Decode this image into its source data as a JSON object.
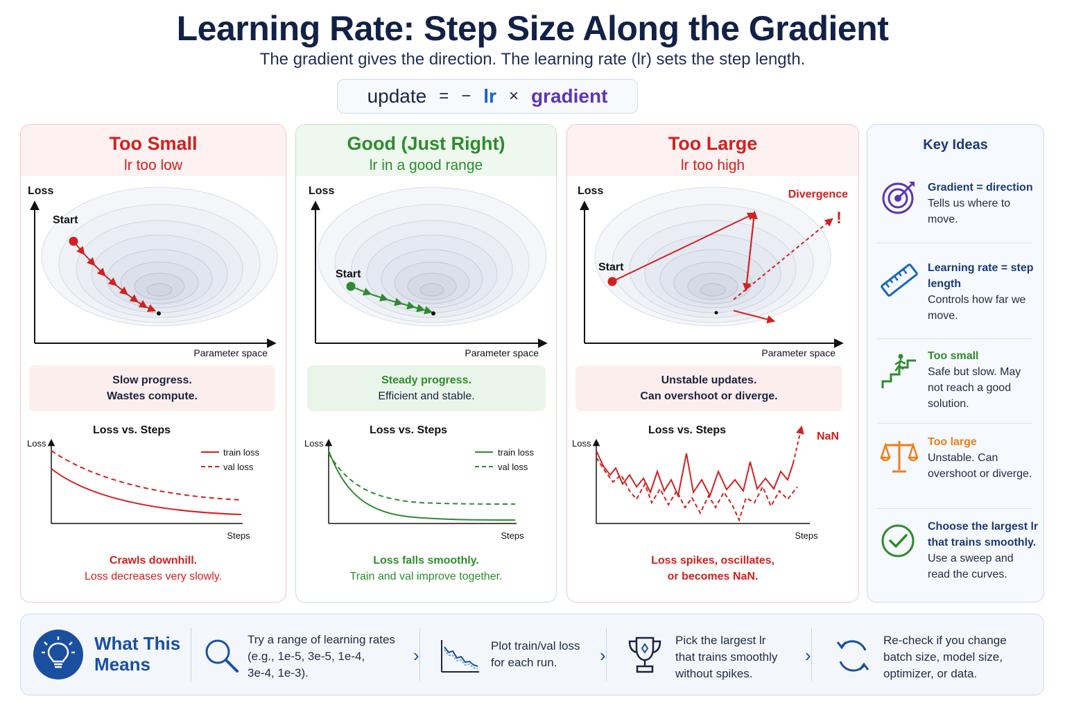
{
  "header": {
    "title": "Learning Rate: Step Size Along the Gradient",
    "subtitle": "The gradient gives the direction. The learning rate (lr) sets the step length."
  },
  "formula": {
    "update": "update",
    "equals": "=",
    "minus": "−",
    "lr": "lr",
    "times": "×",
    "gradient": "gradient"
  },
  "colors": {
    "red": "#d32020",
    "green": "#2e8b2e",
    "blue": "#1a4fa0",
    "purple": "#5e35b1",
    "orange": "#ef7d17"
  },
  "panels": {
    "small": {
      "title": "Too Small",
      "subtitle": "lr too low",
      "axis_y": "Loss",
      "axis_x": "Parameter space",
      "start": "Start",
      "note_line1": "Slow progress.",
      "note_line2": "Wastes compute.",
      "chart_title": "Loss vs. Steps",
      "chart_y": "Loss",
      "chart_x": "Steps",
      "legend_train": "train loss",
      "legend_val": "val loss",
      "caption_line1": "Crawls downhill.",
      "caption_line2": "Loss decreases very slowly."
    },
    "good": {
      "title": "Good (Just Right)",
      "subtitle": "lr in a good range",
      "axis_y": "Loss",
      "axis_x": "Parameter space",
      "start": "Start",
      "note_line1": "Steady progress.",
      "note_line2": "Efficient and stable.",
      "chart_title": "Loss vs. Steps",
      "chart_y": "Loss",
      "chart_x": "Steps",
      "legend_train": "train loss",
      "legend_val": "val loss",
      "caption_line1": "Loss falls smoothly.",
      "caption_line2": "Train and val improve together."
    },
    "large": {
      "title": "Too Large",
      "subtitle": "lr too high",
      "axis_y": "Loss",
      "axis_x": "Parameter space",
      "start": "Start",
      "divergence": "Divergence",
      "exclaim": "!",
      "note_line1": "Unstable updates.",
      "note_line2": "Can overshoot or diverge.",
      "chart_title": "Loss vs. Steps",
      "chart_y": "Loss",
      "chart_x": "Steps",
      "nan": "NaN",
      "caption_line1": "Loss spikes, oscillates,",
      "caption_line2": "or becomes NaN."
    }
  },
  "key_ideas": {
    "title": "Key Ideas",
    "items": [
      {
        "icon": "target-icon",
        "head": "Gradient = direction",
        "body": "Tells us where to move."
      },
      {
        "icon": "ruler-icon",
        "head": "Learning rate = step length",
        "body": "Controls how far we move."
      },
      {
        "icon": "stairs-icon",
        "head": "Too small",
        "body": "Safe but slow. May not reach a good solution."
      },
      {
        "icon": "scale-icon",
        "head": "Too large",
        "body": "Unstable. Can overshoot or diverge."
      },
      {
        "icon": "check-circle-icon",
        "head": "Choose the largest lr that trains smoothly.",
        "body": "Use a sweep and read the curves."
      }
    ]
  },
  "bottom": {
    "heading_line1": "What This",
    "heading_line2": "Means",
    "steps": [
      {
        "icon": "magnifier-icon",
        "line1": "Try a range of learning rates",
        "line2": "(e.g., 1e-5, 3e-5, 1e-4,",
        "line3": "3e-4, 1e-3)."
      },
      {
        "icon": "mini-chart-icon",
        "line1": "Plot train/val loss",
        "line2": "for each run.",
        "line3": ""
      },
      {
        "icon": "trophy-icon",
        "line1": "Pick the largest lr",
        "line2": "that trains smoothly",
        "line3": "without spikes."
      },
      {
        "icon": "refresh-icon",
        "line1": "Re-check if you change",
        "line2": "batch size, model size,",
        "line3": "optimizer, or data."
      }
    ]
  }
}
